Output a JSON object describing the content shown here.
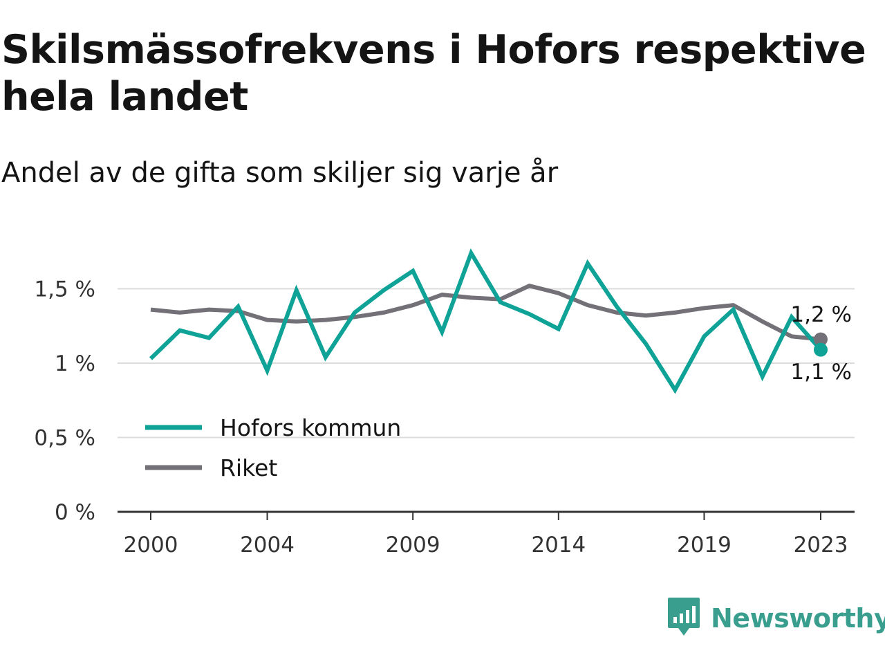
{
  "header": {
    "title": "Skilsmässofrekvens i Hofors respektive hela landet",
    "subtitle": "Andel av de gifta som skiljer sig varje år"
  },
  "brand": {
    "name": "Newsworthy",
    "icon": "newsworthy-chart-bubble-icon",
    "color": "#3a9e8f"
  },
  "chart_data": {
    "type": "line",
    "x": [
      2000,
      2001,
      2002,
      2003,
      2004,
      2005,
      2006,
      2007,
      2008,
      2009,
      2010,
      2011,
      2012,
      2013,
      2014,
      2015,
      2016,
      2017,
      2018,
      2019,
      2020,
      2021,
      2022,
      2023
    ],
    "x_ticks": [
      2000,
      2004,
      2009,
      2014,
      2019,
      2023
    ],
    "x_tick_labels": [
      "2000",
      "2004",
      "2009",
      "2014",
      "2019",
      "2023"
    ],
    "y_ticks": [
      0,
      0.5,
      1,
      1.5
    ],
    "y_tick_labels": [
      "0 %",
      "0,5 %",
      "1 %",
      "1,5 %"
    ],
    "ylim": [
      0,
      1.78
    ],
    "unit": "%",
    "grid": true,
    "legend_position": "bottom-left",
    "series": [
      {
        "name": "Hofors kommun",
        "color": "#0fa398",
        "values": [
          1.03,
          1.22,
          1.17,
          1.38,
          0.95,
          1.49,
          1.04,
          1.34,
          1.49,
          1.62,
          1.21,
          1.74,
          1.41,
          1.33,
          1.23,
          1.67,
          1.38,
          1.13,
          0.82,
          1.18,
          1.36,
          0.91,
          1.31,
          1.09
        ],
        "end_label": "1,1 %"
      },
      {
        "name": "Riket",
        "color": "#737177",
        "values": [
          1.36,
          1.34,
          1.36,
          1.35,
          1.29,
          1.28,
          1.29,
          1.31,
          1.34,
          1.39,
          1.46,
          1.44,
          1.43,
          1.52,
          1.47,
          1.39,
          1.34,
          1.32,
          1.34,
          1.37,
          1.39,
          1.28,
          1.18,
          1.16
        ],
        "end_label": "1,2 %"
      }
    ]
  }
}
